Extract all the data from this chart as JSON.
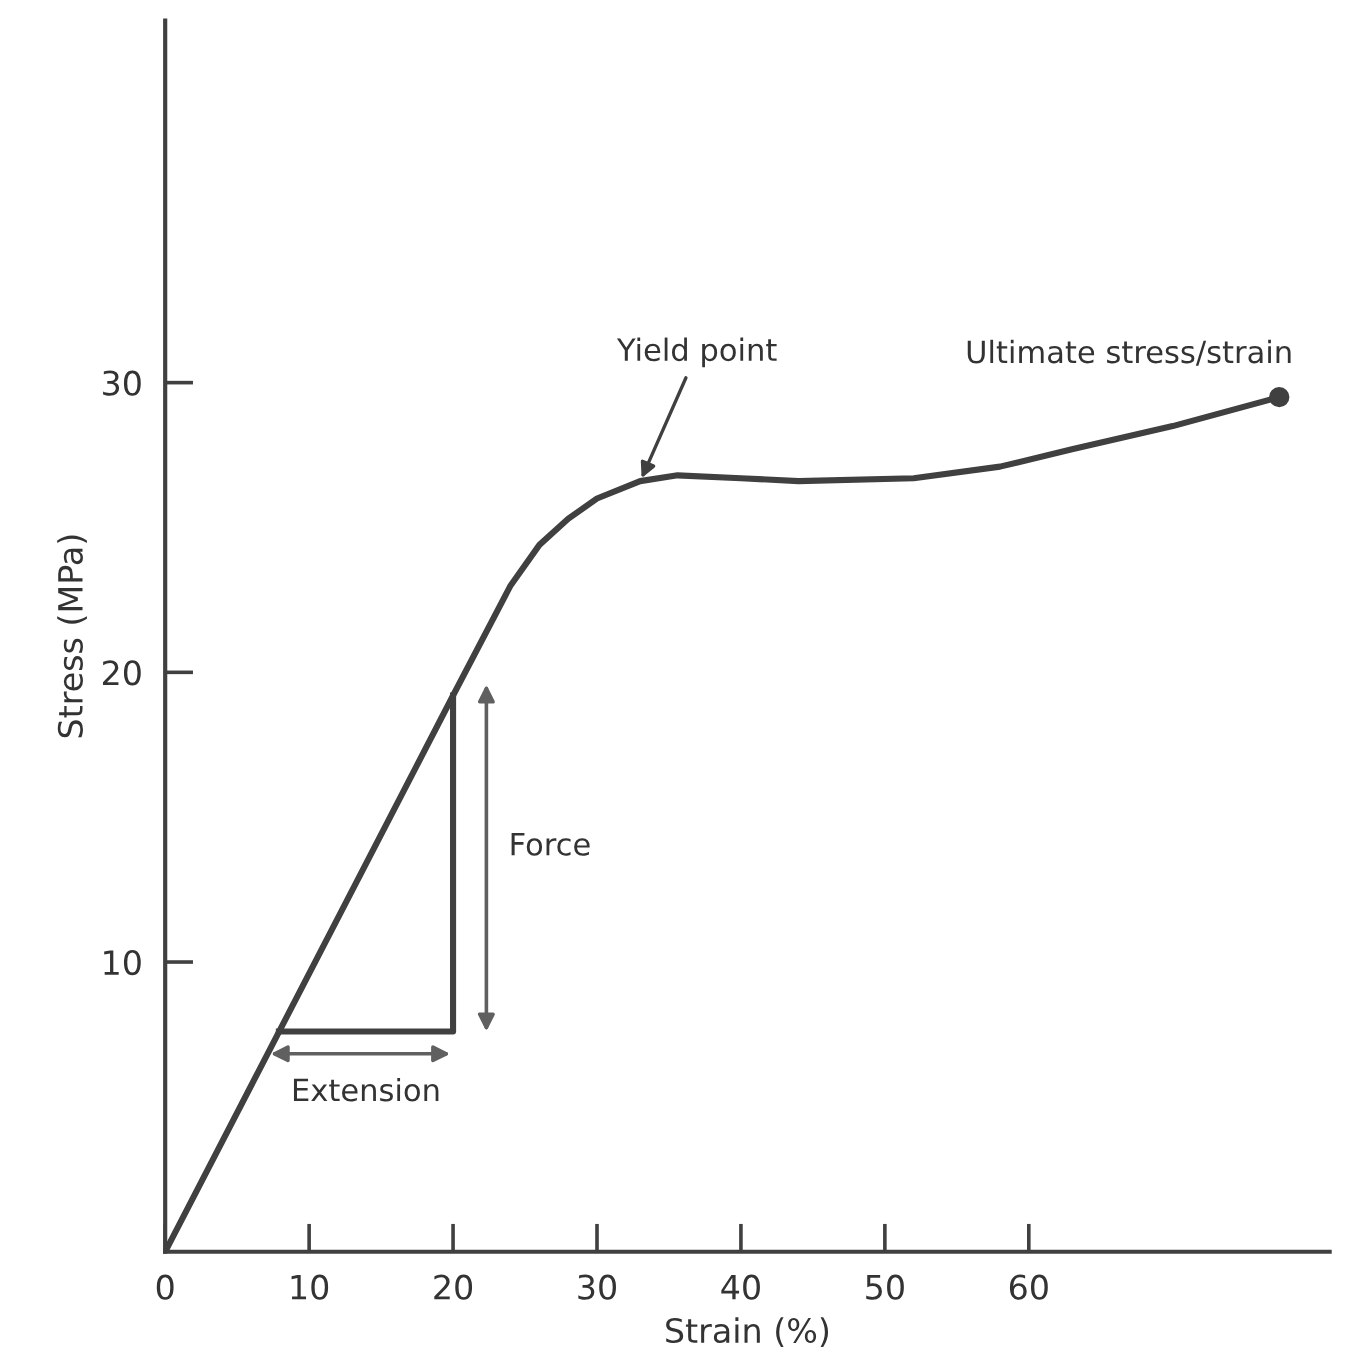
{
  "chart_data": {
    "type": "line",
    "xlabel": "Strain (%)",
    "ylabel": "Stress (MPa)",
    "xlim": [
      0,
      80.9
    ],
    "ylim": [
      0,
      42.5
    ],
    "xticks": [
      0,
      10,
      20,
      30,
      40,
      50,
      60
    ],
    "yticks": [
      10,
      20,
      30
    ],
    "grid": false,
    "legend": false,
    "series": [
      {
        "color": "#404040",
        "x": [
          0,
          20,
          24,
          26,
          28,
          30,
          33,
          35.6,
          40,
          44,
          52,
          58,
          63,
          70,
          77.4
        ],
        "values": [
          0,
          19.2,
          23.0,
          24.4,
          25.3,
          26.0,
          26.6,
          26.8,
          26.7,
          26.6,
          26.7,
          27.1,
          27.7,
          28.5,
          29.5
        ]
      },
      {
        "type": "scatter",
        "color": "#404040",
        "marker": "circle",
        "x": [
          77.4
        ],
        "values": [
          29.5
        ]
      },
      {
        "color": "#404040",
        "x": [
          7.9,
          20,
          20
        ],
        "values": [
          7.6,
          7.6,
          19.2
        ]
      }
    ],
    "annotations": [
      {
        "text": "Ultimate stress/strain",
        "x": 77.4,
        "y": 29.5
      },
      {
        "text": "Yield point",
        "x": 33.1,
        "y": 26.7
      },
      "Force",
      "Extension"
    ]
  }
}
